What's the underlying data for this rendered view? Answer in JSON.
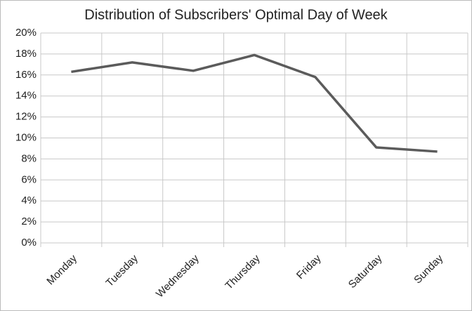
{
  "chart_data": {
    "type": "line",
    "title": "Distribution of Subscribers' Optimal Day of Week",
    "categories": [
      "Monday",
      "Tuesday",
      "Wednesday",
      "Thursday",
      "Friday",
      "Saturday",
      "Sunday"
    ],
    "values": [
      16.3,
      17.2,
      16.4,
      17.9,
      15.8,
      9.1,
      8.7
    ],
    "color": "#5b5b5b",
    "ylim": [
      0,
      20
    ],
    "yticks": [
      {
        "value": 0,
        "label": "0%"
      },
      {
        "value": 2,
        "label": "2%"
      },
      {
        "value": 4,
        "label": "4%"
      },
      {
        "value": 6,
        "label": "6%"
      },
      {
        "value": 8,
        "label": "8%"
      },
      {
        "value": 10,
        "label": "10%"
      },
      {
        "value": 12,
        "label": "12%"
      },
      {
        "value": 14,
        "label": "14%"
      },
      {
        "value": 16,
        "label": "16%"
      },
      {
        "value": 18,
        "label": "18%"
      },
      {
        "value": 20,
        "label": "20%"
      }
    ],
    "grid": true
  }
}
